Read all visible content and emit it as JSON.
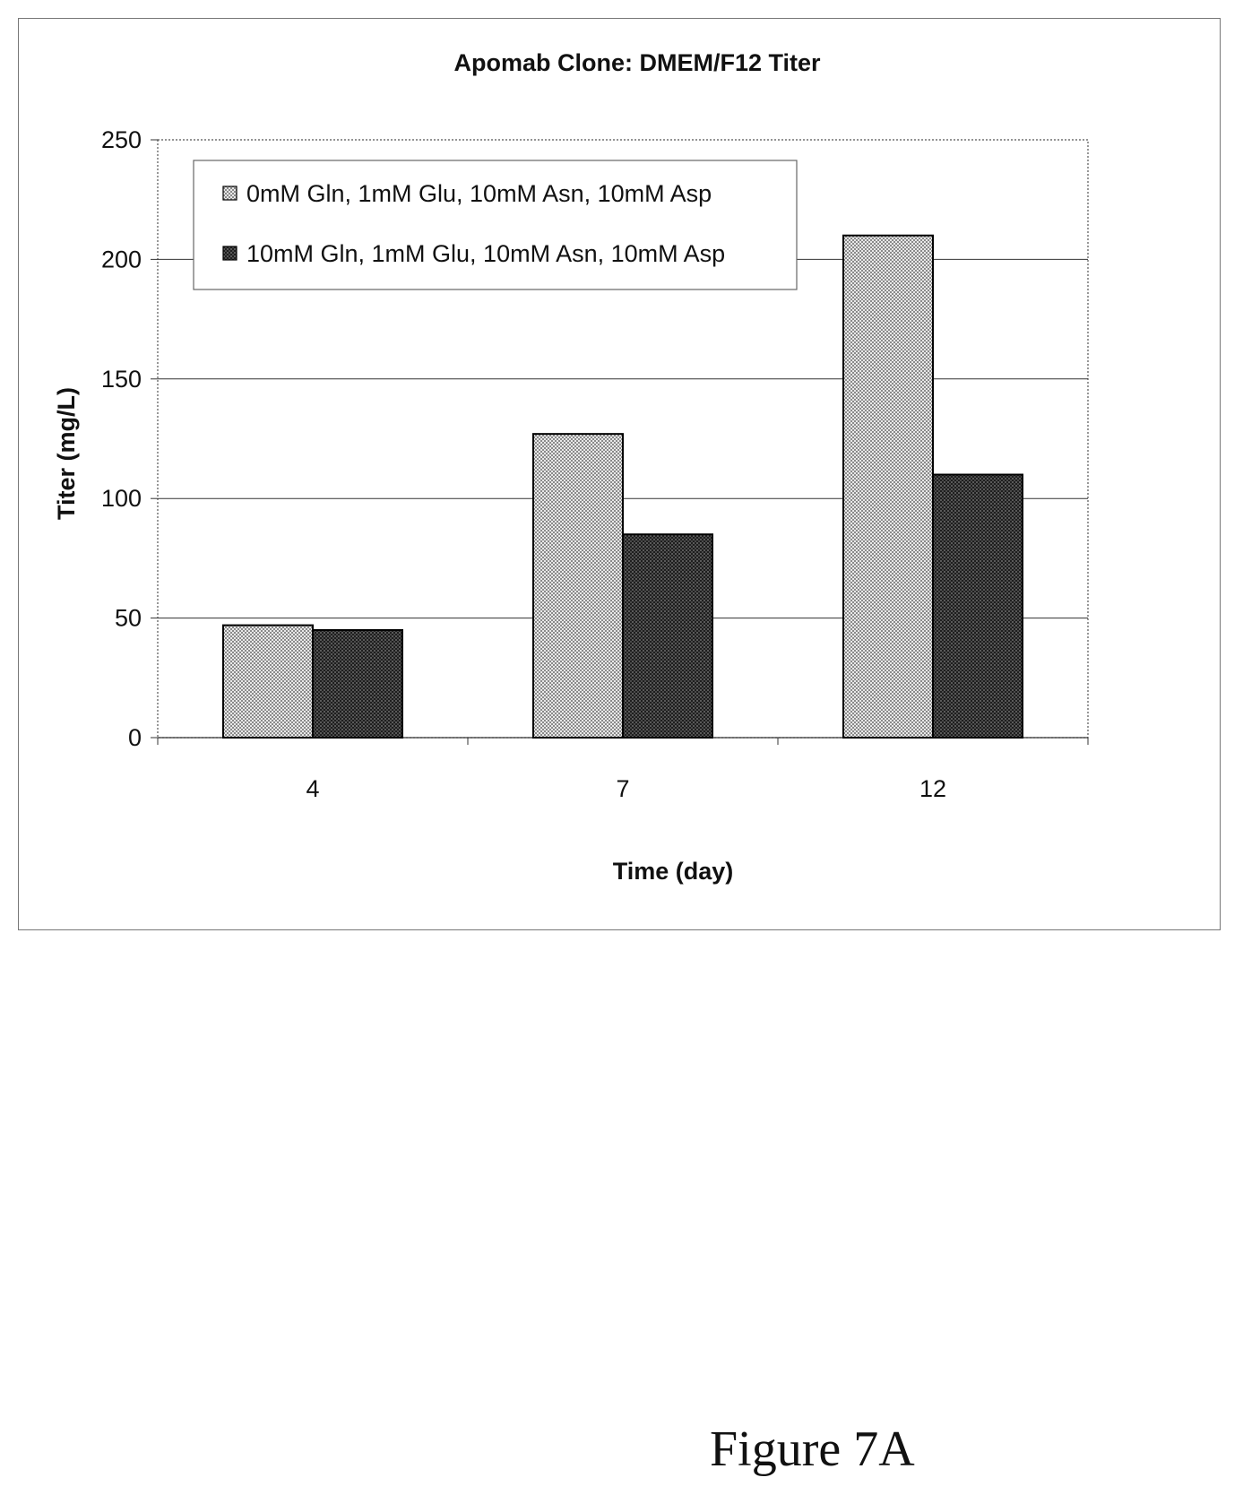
{
  "figure": {
    "caption": "Figure 7A"
  },
  "chart_data": {
    "type": "bar",
    "title": "Apomab Clone: DMEM/F12 Titer",
    "xlabel": "Time (day)",
    "ylabel": "Titer (mg/L)",
    "categories": [
      "4",
      "7",
      "12"
    ],
    "ylim": [
      0,
      250
    ],
    "yticks": [
      0,
      50,
      100,
      150,
      200,
      250
    ],
    "grid": true,
    "legend_position": "top-left",
    "series": [
      {
        "name": "0mM Gln, 1mM Glu, 10mM Asn, 10mM Asp",
        "values": [
          47,
          127,
          210
        ],
        "pattern": "light-dotted"
      },
      {
        "name": "10mM Gln, 1mM Glu, 10mM Asn, 10mM Asp",
        "values": [
          45,
          85,
          110
        ],
        "pattern": "dark-dotted"
      }
    ]
  }
}
